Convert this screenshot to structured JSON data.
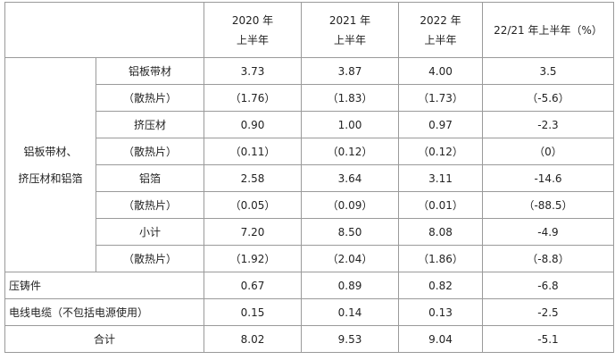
{
  "table": {
    "header": [
      [
        "2020 年",
        "上半年"
      ],
      [
        "2021 年",
        "上半年"
      ],
      [
        "2022 年",
        "上半年"
      ],
      [
        "22/21 年上半年（%）"
      ]
    ],
    "group": [
      "铝板带材、",
      "挤压材和铝箔"
    ],
    "group_rows": [
      [
        "铝板带材",
        "3.73",
        "3.87",
        "4.00",
        "3.5"
      ],
      [
        "（散热片）",
        "（1.76）",
        "（1.83）",
        "（1.73）",
        "（-5.6）"
      ],
      [
        "挤压材",
        "0.90",
        "1.00",
        "0.97",
        "-2.3"
      ],
      [
        "（散热片）",
        "（0.11）",
        "（0.12）",
        "（0.12）",
        "（0）"
      ],
      [
        "铝箔",
        "2.58",
        "3.64",
        "3.11",
        "-14.6"
      ],
      [
        "（散热片）",
        "（0.05）",
        "（0.09）",
        "（0.01）",
        "（-88.5）"
      ],
      [
        "小计",
        "7.20",
        "8.50",
        "8.08",
        "-4.9"
      ],
      [
        "（散热片）",
        "（1.92）",
        "（2.04）",
        "（1.86）",
        "（-8.8）"
      ]
    ],
    "other_rows": [
      [
        "压铸件",
        "0.67",
        "0.89",
        "0.82",
        "-6.8"
      ],
      [
        "电线电缆（不包括电源使用）",
        "0.15",
        "0.14",
        "0.13",
        "-2.5"
      ]
    ],
    "total": [
      "合计",
      "8.02",
      "9.53",
      "9.04",
      "-5.1"
    ]
  }
}
